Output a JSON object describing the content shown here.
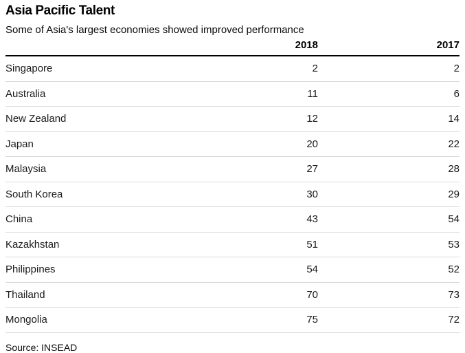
{
  "header": {
    "title": "Asia Pacific Talent",
    "subtitle": "Some of Asia's largest economies showed improved performance"
  },
  "table": {
    "col_country": "",
    "col_2018": "2018",
    "col_2017": "2017",
    "rows": [
      {
        "country": "Singapore",
        "v2018": "2",
        "v2017": "2"
      },
      {
        "country": "Australia",
        "v2018": "11",
        "v2017": "6"
      },
      {
        "country": "New Zealand",
        "v2018": "12",
        "v2017": "14"
      },
      {
        "country": "Japan",
        "v2018": "20",
        "v2017": "22"
      },
      {
        "country": "Malaysia",
        "v2018": "27",
        "v2017": "28"
      },
      {
        "country": "South Korea",
        "v2018": "30",
        "v2017": "29"
      },
      {
        "country": "China",
        "v2018": "43",
        "v2017": "54"
      },
      {
        "country": "Kazakhstan",
        "v2018": "51",
        "v2017": "53"
      },
      {
        "country": "Philippines",
        "v2018": "54",
        "v2017": "52"
      },
      {
        "country": "Thailand",
        "v2018": "70",
        "v2017": "73"
      },
      {
        "country": "Mongolia",
        "v2018": "75",
        "v2017": "72"
      }
    ]
  },
  "footer": {
    "source": "Source: INSEAD"
  },
  "colors": {
    "header_rule": "#000000",
    "row_separator": "#d9d9d9",
    "text": "#1a1a1a",
    "background": "#ffffff"
  },
  "chart_data": {
    "type": "table",
    "title": "Asia Pacific Talent",
    "subtitle": "Some of Asia's largest economies showed improved performance",
    "columns": [
      "2018",
      "2017"
    ],
    "categories": [
      "Singapore",
      "Australia",
      "New Zealand",
      "Japan",
      "Malaysia",
      "South Korea",
      "China",
      "Kazakhstan",
      "Philippines",
      "Thailand",
      "Mongolia"
    ],
    "series": [
      {
        "name": "2018",
        "values": [
          2,
          11,
          12,
          20,
          27,
          30,
          43,
          51,
          54,
          70,
          75
        ]
      },
      {
        "name": "2017",
        "values": [
          2,
          6,
          14,
          22,
          28,
          29,
          54,
          53,
          52,
          73,
          72
        ]
      }
    ],
    "source": "Source: INSEAD",
    "layout_hints": {
      "value_alignment": "right",
      "header_rule": "thick-black",
      "row_separators": "light-gray"
    }
  }
}
